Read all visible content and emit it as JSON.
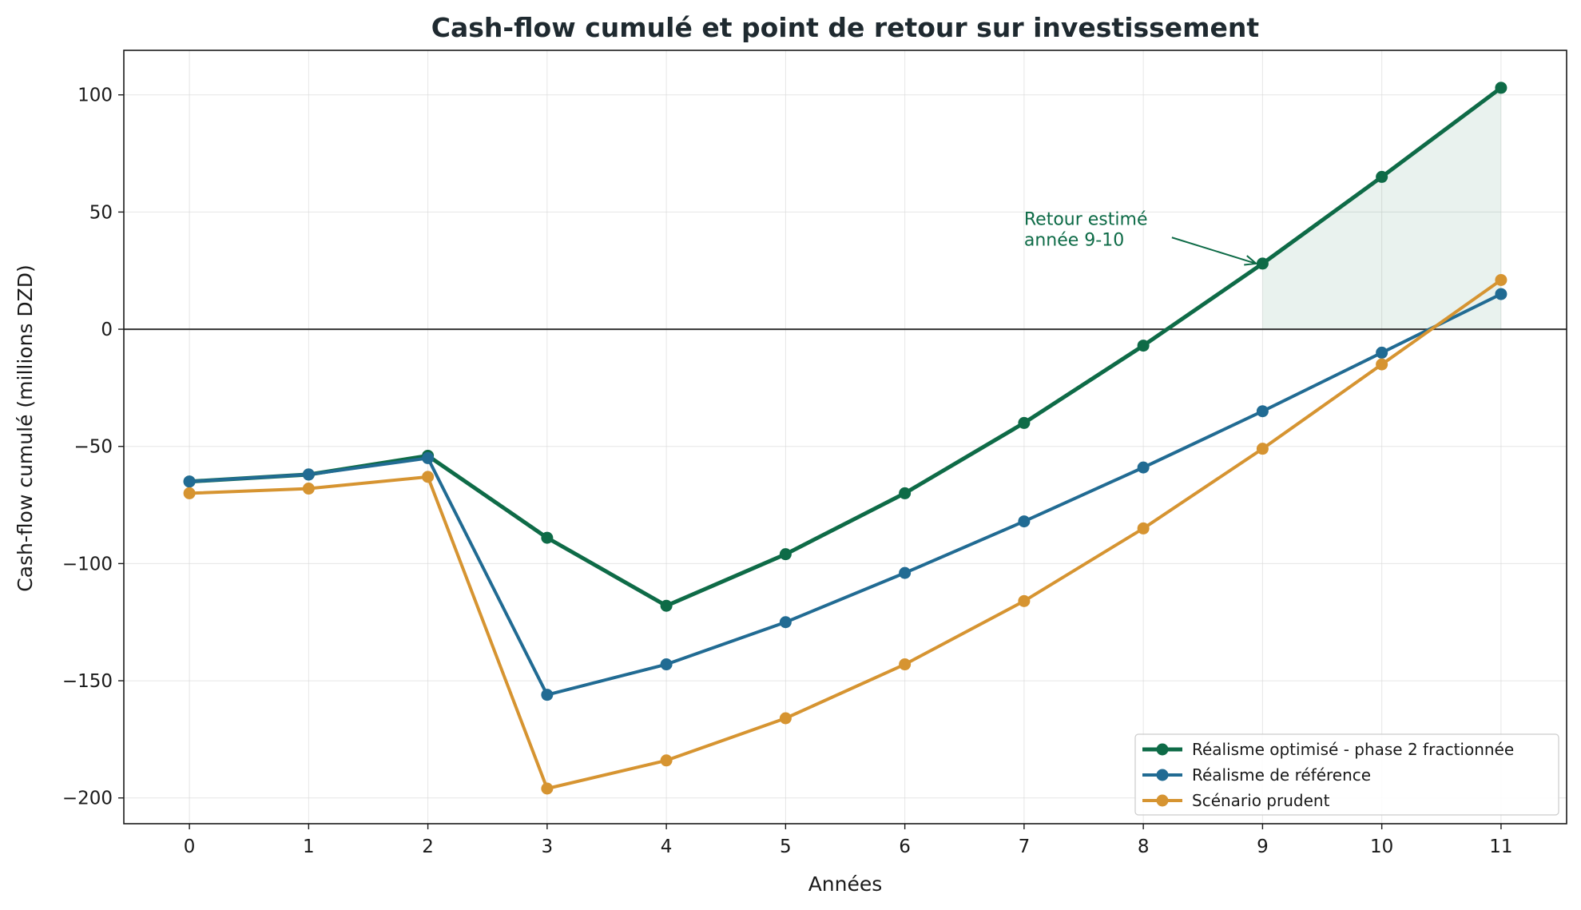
{
  "chart_data": {
    "type": "line",
    "title": "Cash-flow cumulé et point de retour sur investissement",
    "xlabel": "Années",
    "ylabel": "Cash-flow cumulé (millions DZD)",
    "x": [
      0,
      1,
      2,
      3,
      4,
      5,
      6,
      7,
      8,
      9,
      10,
      11
    ],
    "xlim": [
      -0.55,
      11.55
    ],
    "ylim": [
      -211,
      119
    ],
    "xticks": [
      0,
      1,
      2,
      3,
      4,
      5,
      6,
      7,
      8,
      9,
      10,
      11
    ],
    "yticks": [
      -200,
      -150,
      -100,
      -50,
      0,
      50,
      100
    ],
    "grid": true,
    "zero_line": true,
    "legend_position": "bottom-right",
    "series": [
      {
        "name": "Réalisme optimisé - phase 2 fractionnée",
        "color": "#0e6b47",
        "values": [
          -65,
          -62,
          -54,
          -89,
          -118,
          -96,
          -70,
          -40,
          -7,
          28,
          65,
          103
        ]
      },
      {
        "name": "Réalisme de référence",
        "color": "#216b93",
        "values": [
          -65,
          -62,
          -55,
          -156,
          -143,
          -125,
          -104,
          -82,
          -59,
          -35,
          -10,
          15
        ]
      },
      {
        "name": "Scénario prudent",
        "color": "#d69431",
        "values": [
          -70,
          -68,
          -63,
          -196,
          -184,
          -166,
          -143,
          -116,
          -85,
          -51,
          -15,
          21
        ]
      }
    ],
    "shaded_region": {
      "series_index": 0,
      "x_from": 9,
      "x_to": 11,
      "color": "#0e6b47",
      "opacity": 0.09
    },
    "annotations": [
      {
        "text_lines": [
          "Retour estimé",
          "année 9-10"
        ],
        "text_x": 7,
        "text_y": 33,
        "arrow_to_x": 9,
        "arrow_to_y": 28,
        "color": "#0e6b47"
      }
    ]
  }
}
